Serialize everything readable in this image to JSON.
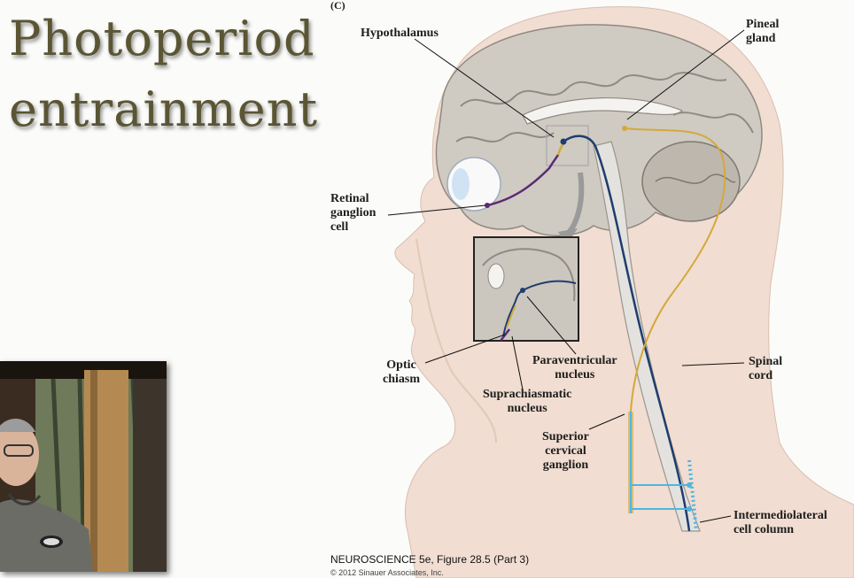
{
  "slide": {
    "title_line1": "Photoperiod",
    "title_line2": "entrainment"
  },
  "figure": {
    "panel_letter": "(C)",
    "labels": {
      "hypothalamus": "Hypothalamus",
      "pineal": [
        "Pineal",
        "gland"
      ],
      "retinal": [
        "Retinal",
        "ganglion",
        "cell"
      ],
      "optic": [
        "Optic",
        "chiasm"
      ],
      "paraventricular": [
        "Paraventricular",
        "nucleus"
      ],
      "suprachiasmatic": [
        "Suprachiasmatic",
        "nucleus"
      ],
      "spinal": [
        "Spinal",
        "cord"
      ],
      "superior": [
        "Superior",
        "cervical",
        "ganglion"
      ],
      "intermediolateral": [
        "Intermediolateral",
        "cell column"
      ]
    },
    "caption_title": "NEUROSCIENCE 5e, Figure 28.5 (Part 3)",
    "copyright": "© 2012 Sinauer Associates, Inc."
  },
  "colors": {
    "title": "#5a5533",
    "brain": "#cfcac2",
    "skin": "#f1ddd1",
    "pathway_blue": "#1f3d6e",
    "pathway_yellow": "#d3a93a",
    "pathway_purple": "#5a2a73",
    "light_blue": "#4fb5e0"
  }
}
